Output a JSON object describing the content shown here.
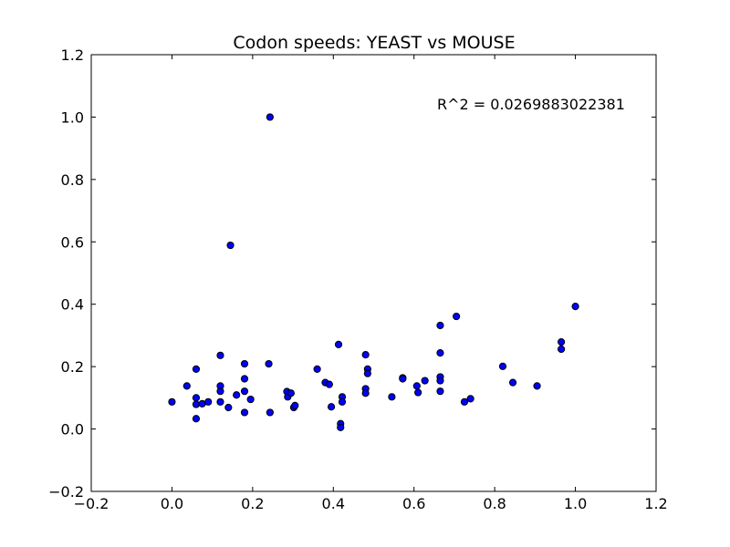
{
  "chart_data": {
    "type": "scatter",
    "title": "Codon speeds: YEAST vs MOUSE",
    "xlabel": "",
    "ylabel": "",
    "xlim": [
      -0.2,
      1.2
    ],
    "ylim": [
      -0.2,
      1.2
    ],
    "xticks": [
      "−0.2",
      "0.0",
      "0.2",
      "0.4",
      "0.6",
      "0.8",
      "1.0",
      "1.2"
    ],
    "yticks": [
      "−0.2",
      "0.0",
      "0.2",
      "0.4",
      "0.6",
      "0.8",
      "1.0",
      "1.2"
    ],
    "annotation": "R^2 = 0.0269883022381",
    "grid": false,
    "marker_color": "#0000ff",
    "marker_edge": "#000000",
    "points": [
      {
        "x": 0.0,
        "y": 0.087
      },
      {
        "x": 0.037,
        "y": 0.138
      },
      {
        "x": 0.06,
        "y": 0.192
      },
      {
        "x": 0.06,
        "y": 0.1
      },
      {
        "x": 0.06,
        "y": 0.079
      },
      {
        "x": 0.06,
        "y": 0.033
      },
      {
        "x": 0.075,
        "y": 0.081
      },
      {
        "x": 0.09,
        "y": 0.087
      },
      {
        "x": 0.12,
        "y": 0.236
      },
      {
        "x": 0.12,
        "y": 0.138
      },
      {
        "x": 0.12,
        "y": 0.121
      },
      {
        "x": 0.12,
        "y": 0.087
      },
      {
        "x": 0.14,
        "y": 0.069
      },
      {
        "x": 0.145,
        "y": 0.589
      },
      {
        "x": 0.16,
        "y": 0.109
      },
      {
        "x": 0.18,
        "y": 0.209
      },
      {
        "x": 0.18,
        "y": 0.161
      },
      {
        "x": 0.18,
        "y": 0.121
      },
      {
        "x": 0.18,
        "y": 0.053
      },
      {
        "x": 0.195,
        "y": 0.095
      },
      {
        "x": 0.24,
        "y": 0.209
      },
      {
        "x": 0.243,
        "y": 1.0
      },
      {
        "x": 0.243,
        "y": 0.053
      },
      {
        "x": 0.285,
        "y": 0.12
      },
      {
        "x": 0.287,
        "y": 0.103
      },
      {
        "x": 0.295,
        "y": 0.115
      },
      {
        "x": 0.302,
        "y": 0.069
      },
      {
        "x": 0.305,
        "y": 0.075
      },
      {
        "x": 0.36,
        "y": 0.192
      },
      {
        "x": 0.38,
        "y": 0.149
      },
      {
        "x": 0.39,
        "y": 0.143
      },
      {
        "x": 0.395,
        "y": 0.071
      },
      {
        "x": 0.413,
        "y": 0.271
      },
      {
        "x": 0.418,
        "y": 0.017
      },
      {
        "x": 0.418,
        "y": 0.005
      },
      {
        "x": 0.422,
        "y": 0.103
      },
      {
        "x": 0.422,
        "y": 0.087
      },
      {
        "x": 0.48,
        "y": 0.238
      },
      {
        "x": 0.485,
        "y": 0.192
      },
      {
        "x": 0.485,
        "y": 0.178
      },
      {
        "x": 0.48,
        "y": 0.129
      },
      {
        "x": 0.48,
        "y": 0.115
      },
      {
        "x": 0.545,
        "y": 0.103
      },
      {
        "x": 0.572,
        "y": 0.164
      },
      {
        "x": 0.572,
        "y": 0.161
      },
      {
        "x": 0.607,
        "y": 0.138
      },
      {
        "x": 0.61,
        "y": 0.117
      },
      {
        "x": 0.627,
        "y": 0.155
      },
      {
        "x": 0.665,
        "y": 0.332
      },
      {
        "x": 0.665,
        "y": 0.244
      },
      {
        "x": 0.665,
        "y": 0.167
      },
      {
        "x": 0.665,
        "y": 0.155
      },
      {
        "x": 0.665,
        "y": 0.121
      },
      {
        "x": 0.705,
        "y": 0.361
      },
      {
        "x": 0.725,
        "y": 0.087
      },
      {
        "x": 0.74,
        "y": 0.097
      },
      {
        "x": 0.82,
        "y": 0.201
      },
      {
        "x": 0.845,
        "y": 0.149
      },
      {
        "x": 0.905,
        "y": 0.138
      },
      {
        "x": 0.965,
        "y": 0.279
      },
      {
        "x": 0.965,
        "y": 0.256
      },
      {
        "x": 1.0,
        "y": 0.393
      }
    ]
  }
}
